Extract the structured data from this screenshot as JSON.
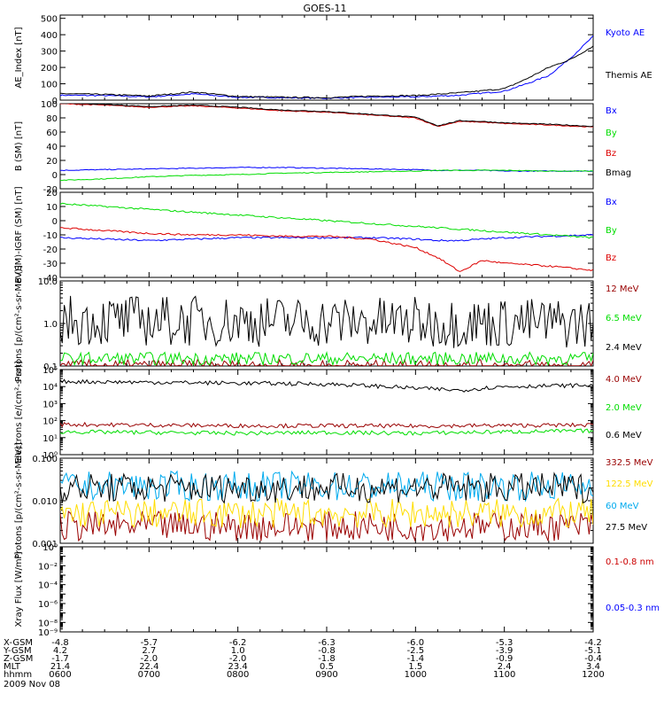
{
  "title": "GOES-11",
  "xaxis": {
    "tick_labels": [
      "0600",
      "0700",
      "0800",
      "0900",
      "1000",
      "1100",
      "1200"
    ],
    "ephemeris": [
      {
        "label": "X-GSM",
        "values": [
          "-4.8",
          "-5.7",
          "-6.2",
          "-6.3",
          "-6.0",
          "-5.3",
          "-4.2"
        ]
      },
      {
        "label": "Y-GSM",
        "values": [
          "4.2",
          "2.7",
          "1.0",
          "-0.8",
          "-2.5",
          "-3.9",
          "-5.1"
        ]
      },
      {
        "label": "Z-GSM",
        "values": [
          "-1.7",
          "-2.0",
          "-2.0",
          "-1.8",
          "-1.4",
          "-0.9",
          "-0.4"
        ]
      },
      {
        "label": "MLT",
        "values": [
          "21.4",
          "22.4",
          "23.4",
          "0.5",
          "1.5",
          "2.4",
          "3.4"
        ]
      },
      {
        "label": "hhmm",
        "values": []
      }
    ],
    "date_label": "2009 Nov 08"
  },
  "chart_data": [
    {
      "type": "line",
      "ylabel": "AE_Index [nT]",
      "ylim": [
        0,
        520
      ],
      "yscale": "linear",
      "yticks": [
        0,
        100,
        200,
        300,
        400,
        500
      ],
      "ytick_labels": [
        "0",
        "100",
        "200",
        "300",
        "400",
        "500"
      ],
      "x": [
        6.0,
        6.5,
        7.0,
        7.5,
        8.0,
        8.5,
        9.0,
        9.5,
        10.0,
        10.5,
        11.0,
        11.25,
        11.5,
        11.75,
        12.0
      ],
      "series": [
        {
          "name": "Kyoto AE",
          "color": "#0000ff",
          "values": [
            30,
            28,
            20,
            38,
            18,
            15,
            12,
            18,
            20,
            30,
            55,
            100,
            150,
            260,
            390
          ]
        },
        {
          "name": "Themis AE",
          "color": "#000000",
          "values": [
            40,
            35,
            25,
            50,
            22,
            18,
            15,
            25,
            28,
            45,
            70,
            130,
            200,
            250,
            330
          ]
        }
      ]
    },
    {
      "type": "line",
      "ylabel": "B (SM) [nT]",
      "ylim": [
        -20,
        100
      ],
      "yscale": "linear",
      "yticks": [
        -20,
        0,
        20,
        40,
        60,
        80,
        100
      ],
      "ytick_labels": [
        "-20",
        "0",
        "20",
        "40",
        "60",
        "80",
        "100"
      ],
      "x": [
        6.0,
        6.5,
        7.0,
        7.5,
        8.0,
        8.5,
        9.0,
        9.5,
        10.0,
        10.25,
        10.5,
        10.75,
        11.0,
        11.5,
        12.0
      ],
      "series": [
        {
          "name": "Bx",
          "color": "#0000ff",
          "values": [
            6,
            7,
            8,
            9,
            10,
            10,
            9,
            8,
            7,
            6,
            6,
            6,
            5,
            5,
            5
          ]
        },
        {
          "name": "By",
          "color": "#00dd00",
          "values": [
            -8,
            -6,
            -3,
            -1,
            0,
            2,
            3,
            4,
            5,
            6,
            6,
            6,
            6,
            5,
            5
          ]
        },
        {
          "name": "Bz",
          "color": "#dd0000",
          "values": [
            100,
            98,
            95,
            97,
            94,
            90,
            88,
            84,
            80,
            68,
            75,
            74,
            72,
            70,
            67
          ]
        },
        {
          "name": "Bmag",
          "color": "#000000",
          "values": [
            101,
            99,
            96,
            98,
            95,
            91,
            89,
            85,
            81,
            69,
            76,
            75,
            73,
            71,
            68
          ]
        }
      ]
    },
    {
      "type": "line",
      "ylabel": "B (SM)-IGRF (SM) [nT]",
      "ylim": [
        -40,
        20
      ],
      "yscale": "linear",
      "yticks": [
        -40,
        -30,
        -20,
        -10,
        0,
        10,
        20
      ],
      "ytick_labels": [
        "-40",
        "-30",
        "-20",
        "-10",
        "0",
        "10",
        "20"
      ],
      "x": [
        6.0,
        6.5,
        7.0,
        7.5,
        8.0,
        8.5,
        9.0,
        9.5,
        10.0,
        10.25,
        10.5,
        10.75,
        11.0,
        11.5,
        12.0
      ],
      "series": [
        {
          "name": "Bx",
          "color": "#0000ff",
          "values": [
            -12,
            -13,
            -14,
            -13,
            -12,
            -12,
            -12,
            -12,
            -13,
            -14,
            -14,
            -13,
            -12,
            -11,
            -10
          ]
        },
        {
          "name": "By",
          "color": "#00dd00",
          "values": [
            12,
            10,
            8,
            6,
            4,
            2,
            0,
            -2,
            -4,
            -5,
            -6,
            -7,
            -8,
            -10,
            -12
          ]
        },
        {
          "name": "Bz",
          "color": "#dd0000",
          "values": [
            -5,
            -7,
            -9,
            -10,
            -10,
            -11,
            -11,
            -13,
            -19,
            -26,
            -36,
            -28,
            -30,
            -32,
            -35
          ]
        }
      ]
    },
    {
      "type": "line",
      "ylabel": "Protons [p/(cm²-s-sr-MeV)]",
      "ylim": [
        0.1,
        10
      ],
      "yscale": "log",
      "yticks": [
        0.1,
        1,
        10
      ],
      "ytick_labels": [
        "0.1",
        "1.0",
        "10.0"
      ],
      "x": [
        6.0,
        12.0
      ],
      "series": [
        {
          "name": "12 MeV",
          "color": "#990000",
          "values": [
            0.1,
            0.1
          ]
        },
        {
          "name": "6.5 MeV",
          "color": "#00dd00",
          "values": [
            0.15,
            0.15
          ]
        },
        {
          "name": "2.4 MeV",
          "color": "#000000",
          "values": [
            1.2,
            1.0
          ]
        }
      ]
    },
    {
      "type": "line",
      "ylabel": "Electrons [e/(cm²-s-sr)]",
      "ylim": [
        1,
        100000
      ],
      "yscale": "log",
      "yticks": [
        1,
        10,
        100,
        1000,
        10000,
        100000
      ],
      "ytick_labels": [
        "10⁰",
        "10¹",
        "10²",
        "10³",
        "10⁴",
        "10⁵"
      ],
      "x": [
        6.0,
        7.0,
        8.0,
        9.0,
        10.0,
        10.5,
        11.0,
        12.0
      ],
      "series": [
        {
          "name": "4.0 MeV",
          "color": "#990000",
          "values": [
            60,
            55,
            50,
            50,
            48,
            50,
            52,
            55
          ]
        },
        {
          "name": "2.0 MeV",
          "color": "#00dd00",
          "values": [
            22,
            20,
            18,
            20,
            18,
            20,
            22,
            25
          ]
        },
        {
          "name": "0.6 MeV",
          "color": "#000000",
          "values": [
            20000,
            18000,
            16000,
            14000,
            8000,
            6000,
            10000,
            12000
          ]
        }
      ]
    },
    {
      "type": "line",
      "ylabel": "Protons [p/(cm²-s-sr-MeV)]",
      "ylim": [
        0.001,
        0.1
      ],
      "yscale": "log",
      "yticks": [
        0.001,
        0.01,
        0.1
      ],
      "ytick_labels": [
        "0.001",
        "0.010",
        "0.100"
      ],
      "x": [
        6.0,
        12.0
      ],
      "series": [
        {
          "name": "332.5 MeV",
          "color": "#990000",
          "values": [
            0.0025,
            0.0025
          ]
        },
        {
          "name": "122.5 MeV",
          "color": "#ffdd00",
          "values": [
            0.005,
            0.005
          ]
        },
        {
          "name": "60 MeV",
          "color": "#00aaee",
          "values": [
            0.022,
            0.022
          ]
        },
        {
          "name": "27.5 MeV",
          "color": "#000000",
          "values": [
            0.02,
            0.02
          ]
        }
      ]
    },
    {
      "type": "line",
      "ylabel": "Xray Flux [W/m²]",
      "ylim": [
        1e-09,
        1
      ],
      "yscale": "log",
      "yticks": [
        1e-09,
        1e-08,
        1e-07,
        1e-06,
        1e-05,
        0.0001,
        0.001,
        0.01,
        0.1,
        1
      ],
      "ytick_labels": [
        "10⁻⁹",
        "10⁻⁸",
        "",
        "10⁻⁶",
        "",
        "10⁻⁴",
        "",
        "10⁻²",
        "",
        "10⁰"
      ],
      "x": [],
      "series": [
        {
          "name": "0.1-0.8 nm",
          "color": "#cc0000",
          "values": []
        },
        {
          "name": "0.05-0.3 nm",
          "color": "#0000ff",
          "values": []
        }
      ]
    }
  ]
}
